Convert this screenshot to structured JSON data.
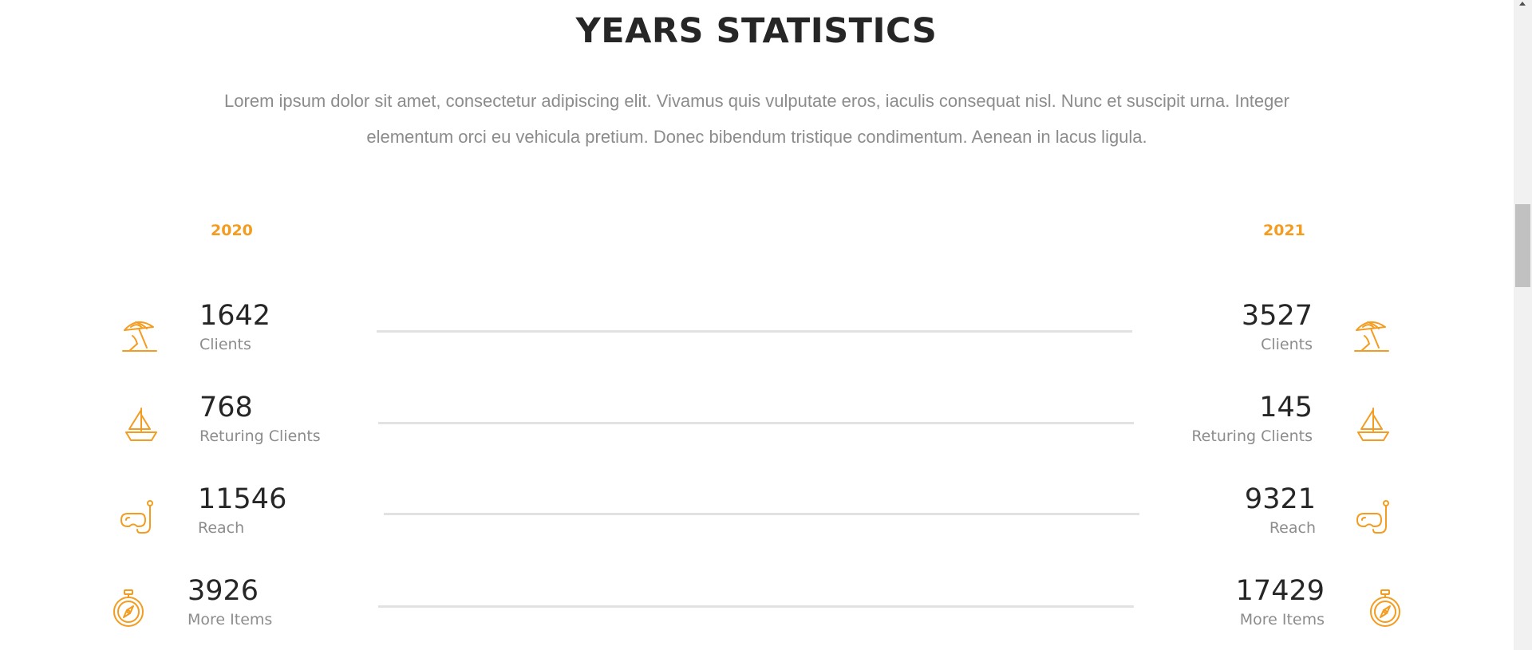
{
  "section": {
    "title": "YEARS STATISTICS",
    "intro": "Lorem ipsum dolor sit amet, consectetur adipiscing elit. Vivamus quis vulputate eros, iaculis consequat nisl. Nunc et suscipit urna. Integer elementum orci eu vehicula pretium. Donec bibendum tristique condimentum. Aenean in lacus ligula."
  },
  "accent_color": "#f39c1f",
  "years": {
    "left": "2020",
    "right": "2021"
  },
  "stats_2020": [
    {
      "value": "1642",
      "label": "Clients",
      "icon": "beach-umbrella-icon"
    },
    {
      "value": "768",
      "label": "Returing Clients",
      "icon": "sailboat-icon"
    },
    {
      "value": "11546",
      "label": "Reach",
      "icon": "snorkel-mask-icon"
    },
    {
      "value": "3926",
      "label": "More Items",
      "icon": "compass-stopwatch-icon"
    }
  ],
  "stats_2021": [
    {
      "value": "3527",
      "label": "Clients",
      "icon": "beach-umbrella-icon"
    },
    {
      "value": "145",
      "label": "Returing Clients",
      "icon": "sailboat-icon"
    },
    {
      "value": "9321",
      "label": "Reach",
      "icon": "snorkel-mask-icon"
    },
    {
      "value": "17429",
      "label": "More Items",
      "icon": "compass-stopwatch-icon"
    }
  ]
}
